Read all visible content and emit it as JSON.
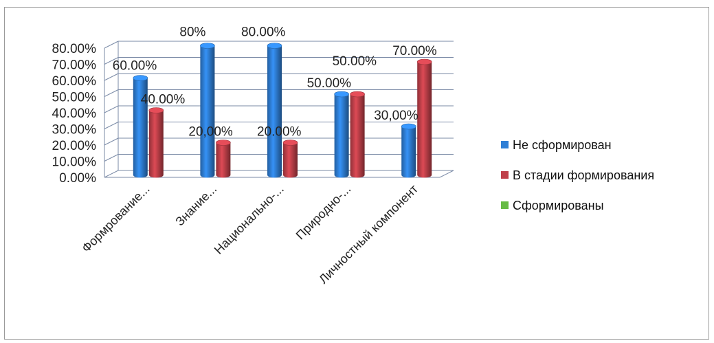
{
  "chart_data": {
    "type": "bar",
    "categories": [
      "Формрование...",
      "Знание...",
      "Национально-...",
      "Природно-...",
      "Личностный компонент"
    ],
    "series": [
      {
        "name": "Не сформирован",
        "color": "#2f7fd6",
        "values": [
          60,
          80,
          80,
          50,
          30
        ],
        "labels": [
          "60.00%",
          "80%",
          "80.00%",
          "50.00%",
          "30,00%"
        ]
      },
      {
        "name": "В стадии формирования",
        "color": "#c0404a",
        "values": [
          40,
          20,
          20,
          50,
          70
        ],
        "labels": [
          "40.00%",
          "20,00%",
          "20.00%",
          "50.00%",
          "70.00%"
        ]
      },
      {
        "name": "Сформированы",
        "color": "#66bb44",
        "values": [
          null,
          null,
          null,
          null,
          null
        ],
        "labels": [
          "",
          "",
          "",
          "",
          ""
        ]
      }
    ],
    "yticks": [
      "0.00%",
      "10.00%",
      "20.00%",
      "30.00%",
      "40.00%",
      "50.00%",
      "60.00%",
      "70.00%",
      "80.00%"
    ],
    "ylim": [
      0,
      80
    ],
    "grid": true,
    "legend": "right"
  }
}
